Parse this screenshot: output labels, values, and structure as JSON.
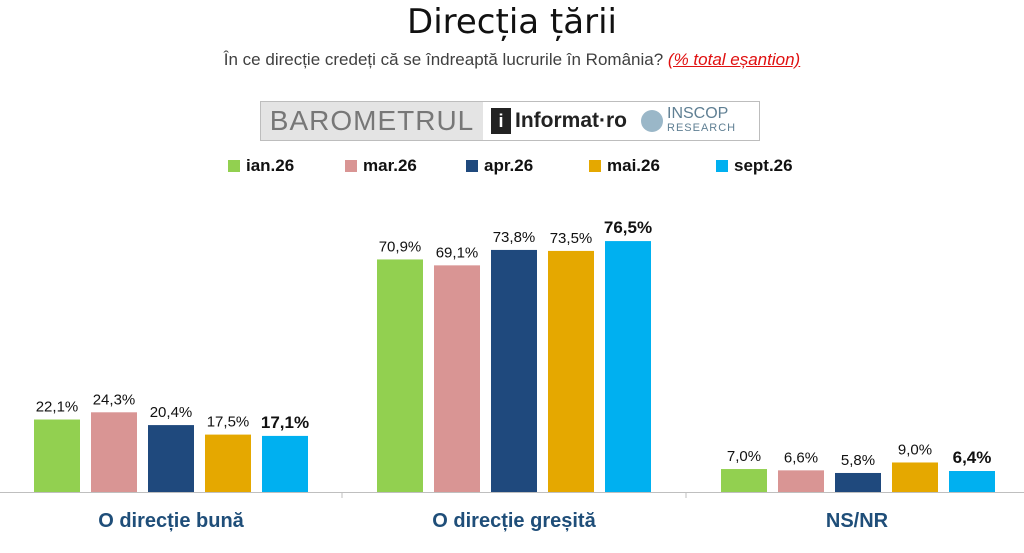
{
  "header": {
    "title": "Direcția țării",
    "subtitle": "În ce direcție credeți că se îndreaptă lucrurile în România?",
    "subtitle_note": "(% total eșantion)"
  },
  "logo": {
    "barometrul": "BAROMETRUL",
    "informat": "Informat·ro",
    "inscop_top": "INSCOP",
    "inscop_bottom": "RESEARCH"
  },
  "chart_data": {
    "type": "bar",
    "title": "Direcția țării",
    "categories": [
      "O direcție bună",
      "O direcție greșită",
      "NS/NR"
    ],
    "series": [
      {
        "name": "ian.26",
        "color": "#92d050",
        "values": [
          22.1,
          70.9,
          7.0
        ],
        "labels": [
          "22,1%",
          "70,9%",
          "7,0%"
        ]
      },
      {
        "name": "mar.26",
        "color": "#d99594",
        "values": [
          24.3,
          69.1,
          6.6
        ],
        "labels": [
          "24,3%",
          "69,1%",
          "6,6%"
        ]
      },
      {
        "name": "apr.26",
        "color": "#1f497d",
        "values": [
          20.4,
          73.8,
          5.8
        ],
        "labels": [
          "20,4%",
          "73,8%",
          "5,8%"
        ]
      },
      {
        "name": "mai.26",
        "color": "#e5a800",
        "values": [
          17.5,
          73.5,
          9.0
        ],
        "labels": [
          "17,5%",
          "73,5%",
          "9,0%"
        ]
      },
      {
        "name": "sept.26",
        "color": "#00b0f0",
        "values": [
          17.1,
          76.5,
          6.4
        ],
        "labels": [
          "17,1%",
          "76,5%",
          "6,4%"
        ]
      }
    ],
    "ylim": [
      0,
      100
    ],
    "grid": false,
    "legend_position": "top",
    "category_label_color": "#1f4e79"
  }
}
